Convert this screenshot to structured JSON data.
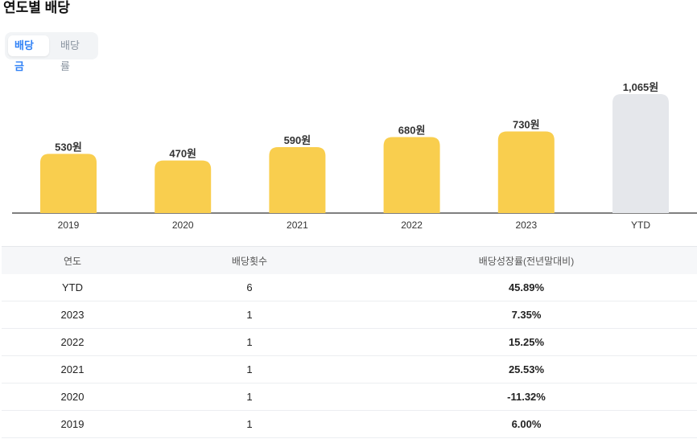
{
  "title": "연도별 배당",
  "tabs": [
    {
      "label": "배당금",
      "active": true
    },
    {
      "label": "배당률",
      "active": false
    }
  ],
  "colors": {
    "bar": "#F9CE4E",
    "bar_ytd": "#E5E7EB",
    "positive": "#F04452",
    "negative": "#3182F6"
  },
  "chart_data": {
    "type": "bar",
    "title": "연도별 배당",
    "categories": [
      "2019",
      "2020",
      "2021",
      "2022",
      "2023",
      "YTD"
    ],
    "values": [
      530,
      470,
      590,
      680,
      730,
      1065
    ],
    "value_labels": [
      "530원",
      "470원",
      "590원",
      "680원",
      "730원",
      "1,065원"
    ],
    "unit": "원",
    "ylim": [
      0,
      1065
    ],
    "grid": false
  },
  "table": {
    "headers": [
      "연도",
      "배당횟수",
      "배당성장률(전년말대비)"
    ],
    "rows": [
      {
        "year": "YTD",
        "count": "6",
        "growth": "45.89%",
        "sign": "pos"
      },
      {
        "year": "2023",
        "count": "1",
        "growth": "7.35%",
        "sign": "pos"
      },
      {
        "year": "2022",
        "count": "1",
        "growth": "15.25%",
        "sign": "pos"
      },
      {
        "year": "2021",
        "count": "1",
        "growth": "25.53%",
        "sign": "pos"
      },
      {
        "year": "2020",
        "count": "1",
        "growth": "-11.32%",
        "sign": "neg"
      },
      {
        "year": "2019",
        "count": "1",
        "growth": "6.00%",
        "sign": "pos"
      }
    ]
  }
}
